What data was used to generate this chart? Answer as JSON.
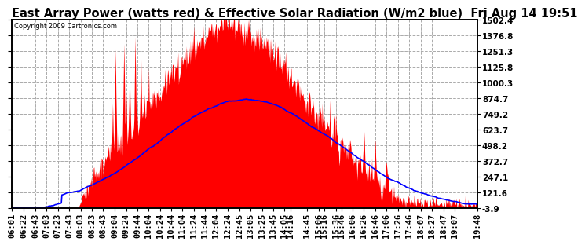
{
  "title": "East Array Power (watts red) & Effective Solar Radiation (W/m2 blue)  Fri Aug 14 19:51",
  "copyright": "Copyright 2009 Cartronics.com",
  "yticks": [
    1502.4,
    1376.8,
    1251.3,
    1125.8,
    1000.3,
    874.7,
    749.2,
    623.7,
    498.2,
    372.7,
    247.1,
    121.6,
    -3.9
  ],
  "ymin": -3.9,
  "ymax": 1502.4,
  "bg_color": "#ffffff",
  "plot_bg_color": "#ffffff",
  "grid_color": "#aaaaaa",
  "red_color": "#ff0000",
  "blue_color": "#0000ff",
  "title_fontsize": 10.5,
  "tick_fontsize": 7.5,
  "start_hhmm": "06:01",
  "end_hhmm": "19:48",
  "x_tick_times": [
    "06:01",
    "06:22",
    "06:43",
    "07:03",
    "07:23",
    "07:43",
    "08:03",
    "08:23",
    "08:43",
    "09:04",
    "09:24",
    "09:44",
    "10:04",
    "10:24",
    "10:44",
    "11:04",
    "11:24",
    "11:44",
    "12:04",
    "12:24",
    "12:45",
    "13:05",
    "13:25",
    "13:45",
    "14:05",
    "14:16",
    "14:45",
    "15:06",
    "15:16",
    "15:36",
    "15:46",
    "16:06",
    "16:26",
    "16:46",
    "17:06",
    "17:26",
    "17:46",
    "18:07",
    "18:27",
    "18:47",
    "19:07",
    "19:48"
  ]
}
